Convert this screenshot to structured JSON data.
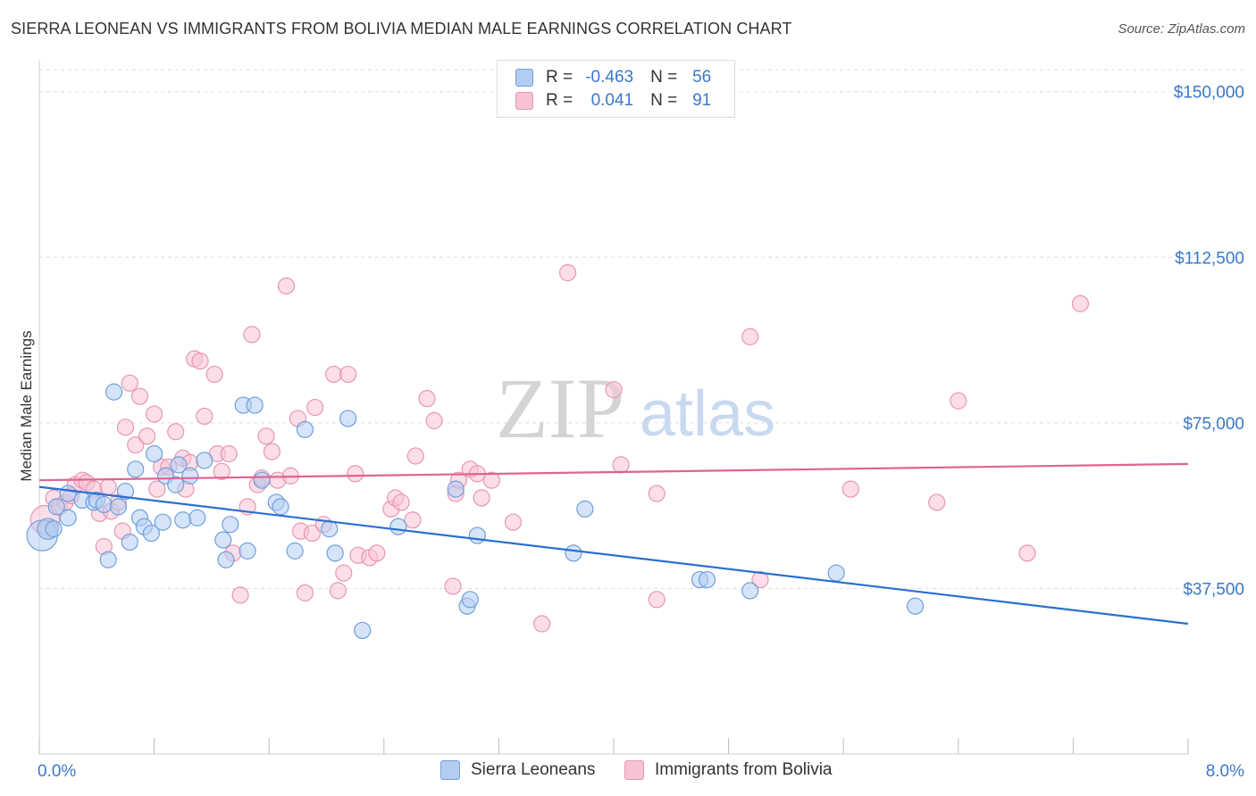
{
  "title": "SIERRA LEONEAN VS IMMIGRANTS FROM BOLIVIA MEDIAN MALE EARNINGS CORRELATION CHART",
  "source": "Source: ZipAtlas.com",
  "watermark": {
    "zip": "ZIP",
    "atlas": "atlas"
  },
  "legend": {
    "series1": {
      "r_label": "R =",
      "r_value": "-0.463",
      "n_label": "N =",
      "n_value": "56"
    },
    "series2": {
      "r_label": "R =",
      "r_value": "0.041",
      "n_label": "N =",
      "n_value": "91"
    }
  },
  "colors": {
    "blue_fill": "#b3cdf2",
    "blue_stroke": "#6f9fdc",
    "blue_line": "#2a6fd1",
    "pink_fill": "#f7c2d3",
    "pink_stroke": "#e896b2",
    "pink_line": "#e0648f",
    "tick_text": "#3a78c9",
    "grid": "#dddddd"
  },
  "chart_data": {
    "type": "scatter",
    "title": "SIERRA LEONEAN VS IMMIGRANTS FROM BOLIVIA MEDIAN MALE EARNINGS CORRELATION CHART",
    "xlabel": "",
    "ylabel": "Median Male Earnings",
    "xlim": [
      0,
      8.0
    ],
    "ylim": [
      0,
      155000
    ],
    "x_tick_labels": [
      "0.0%",
      "8.0%"
    ],
    "y_ticks": [
      37500,
      75000,
      112500,
      150000
    ],
    "y_tick_labels": [
      "$37,500",
      "$75,000",
      "$112,500",
      "$150,000"
    ],
    "legend_entries": [
      "Sierra Leoneans",
      "Immigrants from Bolivia"
    ],
    "series": [
      {
        "name": "Sierra Leoneans",
        "trend": {
          "x": [
            0,
            8.0
          ],
          "y": [
            60500,
            29500
          ]
        },
        "points": [
          [
            0.02,
            49500,
            1.9
          ],
          [
            0.06,
            51000,
            1.3
          ],
          [
            0.1,
            51000,
            1.0
          ],
          [
            0.12,
            56000,
            1.0
          ],
          [
            0.2,
            53500,
            1.0
          ],
          [
            0.2,
            59000,
            1.0
          ],
          [
            0.3,
            57500,
            1.0
          ],
          [
            0.38,
            57000,
            1.0
          ],
          [
            0.4,
            57500,
            1.0
          ],
          [
            0.45,
            56500,
            1.0
          ],
          [
            0.48,
            44000,
            1.0
          ],
          [
            0.52,
            82000,
            1.0
          ],
          [
            0.55,
            56000,
            1.0
          ],
          [
            0.6,
            59500,
            1.0
          ],
          [
            0.63,
            48000,
            1.0
          ],
          [
            0.67,
            64500,
            1.0
          ],
          [
            0.7,
            53500,
            1.0
          ],
          [
            0.73,
            51500,
            1.0
          ],
          [
            0.78,
            50000,
            1.0
          ],
          [
            0.8,
            68000,
            1.0
          ],
          [
            0.86,
            52500,
            1.0
          ],
          [
            0.88,
            63000,
            1.0
          ],
          [
            0.95,
            61000,
            1.0
          ],
          [
            0.97,
            65500,
            1.0
          ],
          [
            1.0,
            53000,
            1.0
          ],
          [
            1.05,
            63000,
            1.0
          ],
          [
            1.1,
            53500,
            1.0
          ],
          [
            1.15,
            66500,
            1.0
          ],
          [
            1.28,
            48500,
            1.0
          ],
          [
            1.3,
            44000,
            1.0
          ],
          [
            1.33,
            52000,
            1.0
          ],
          [
            1.42,
            79000,
            1.0
          ],
          [
            1.45,
            46000,
            1.0
          ],
          [
            1.5,
            79000,
            1.0
          ],
          [
            1.55,
            62000,
            1.0
          ],
          [
            1.65,
            57000,
            1.0
          ],
          [
            1.68,
            56000,
            1.0
          ],
          [
            1.78,
            46000,
            1.0
          ],
          [
            1.85,
            73500,
            1.0
          ],
          [
            2.02,
            51000,
            1.0
          ],
          [
            2.06,
            45500,
            1.0
          ],
          [
            2.15,
            76000,
            1.0
          ],
          [
            2.25,
            28000,
            1.0
          ],
          [
            2.5,
            51500,
            1.0
          ],
          [
            2.9,
            60000,
            1.0
          ],
          [
            2.98,
            33500,
            1.0
          ],
          [
            3.0,
            35000,
            1.0
          ],
          [
            3.05,
            49500,
            1.0
          ],
          [
            3.72,
            45500,
            1.0
          ],
          [
            3.8,
            55500,
            1.0
          ],
          [
            4.6,
            39500,
            1.0
          ],
          [
            4.65,
            39500,
            1.0
          ],
          [
            4.95,
            37000,
            1.0
          ],
          [
            5.55,
            41000,
            1.0
          ],
          [
            6.1,
            33500,
            1.0
          ]
        ]
      },
      {
        "name": "Immigrants from Bolivia",
        "trend": {
          "x": [
            0,
            8.0
          ],
          "y": [
            62000,
            65700
          ]
        },
        "points": [
          [
            0.04,
            53000,
            1.8
          ],
          [
            0.06,
            51000,
            1.0
          ],
          [
            0.1,
            58000,
            1.0
          ],
          [
            0.14,
            56000,
            1.0
          ],
          [
            0.18,
            57000,
            1.0
          ],
          [
            0.22,
            58500,
            1.0
          ],
          [
            0.25,
            61000,
            1.0
          ],
          [
            0.3,
            62000,
            1.0
          ],
          [
            0.33,
            61500,
            1.0
          ],
          [
            0.38,
            60000,
            1.0
          ],
          [
            0.42,
            54500,
            1.0
          ],
          [
            0.45,
            47000,
            1.0
          ],
          [
            0.48,
            60500,
            1.0
          ],
          [
            0.5,
            55000,
            1.0
          ],
          [
            0.55,
            57000,
            1.0
          ],
          [
            0.58,
            50500,
            1.0
          ],
          [
            0.6,
            74000,
            1.0
          ],
          [
            0.63,
            84000,
            1.0
          ],
          [
            0.67,
            70000,
            1.0
          ],
          [
            0.7,
            81000,
            1.0
          ],
          [
            0.75,
            72000,
            1.0
          ],
          [
            0.8,
            77000,
            1.0
          ],
          [
            0.82,
            60000,
            1.0
          ],
          [
            0.85,
            65000,
            1.0
          ],
          [
            0.9,
            65000,
            1.0
          ],
          [
            0.95,
            73000,
            1.0
          ],
          [
            1.0,
            67000,
            1.0
          ],
          [
            1.02,
            60000,
            1.0
          ],
          [
            1.05,
            66000,
            1.0
          ],
          [
            1.08,
            89500,
            1.0
          ],
          [
            1.12,
            89000,
            1.0
          ],
          [
            1.15,
            76500,
            1.0
          ],
          [
            1.22,
            86000,
            1.0
          ],
          [
            1.24,
            68000,
            1.0
          ],
          [
            1.27,
            64000,
            1.0
          ],
          [
            1.32,
            68000,
            1.0
          ],
          [
            1.35,
            45500,
            1.0
          ],
          [
            1.4,
            36000,
            1.0
          ],
          [
            1.45,
            56000,
            1.0
          ],
          [
            1.48,
            95000,
            1.0
          ],
          [
            1.52,
            61000,
            1.0
          ],
          [
            1.55,
            62500,
            1.0
          ],
          [
            1.58,
            72000,
            1.0
          ],
          [
            1.62,
            68500,
            1.0
          ],
          [
            1.66,
            62000,
            1.0
          ],
          [
            1.72,
            106000,
            1.0
          ],
          [
            1.75,
            63000,
            1.0
          ],
          [
            1.8,
            76000,
            1.0
          ],
          [
            1.82,
            50500,
            1.0
          ],
          [
            1.85,
            36500,
            1.0
          ],
          [
            1.9,
            50000,
            1.0
          ],
          [
            1.92,
            78500,
            1.0
          ],
          [
            1.98,
            52000,
            1.0
          ],
          [
            2.05,
            86000,
            1.0
          ],
          [
            2.08,
            37000,
            1.0
          ],
          [
            2.12,
            41000,
            1.0
          ],
          [
            2.15,
            86000,
            1.0
          ],
          [
            2.2,
            63500,
            1.0
          ],
          [
            2.22,
            45000,
            1.0
          ],
          [
            2.3,
            44500,
            1.0
          ],
          [
            2.35,
            45500,
            1.0
          ],
          [
            2.45,
            55500,
            1.0
          ],
          [
            2.48,
            58000,
            1.0
          ],
          [
            2.52,
            57000,
            1.0
          ],
          [
            2.6,
            53000,
            1.0
          ],
          [
            2.62,
            67500,
            1.0
          ],
          [
            2.7,
            80500,
            1.0
          ],
          [
            2.75,
            75500,
            1.0
          ],
          [
            2.88,
            38000,
            1.0
          ],
          [
            2.9,
            59000,
            1.0
          ],
          [
            2.92,
            62000,
            1.0
          ],
          [
            3.0,
            64500,
            1.0
          ],
          [
            3.05,
            63500,
            1.0
          ],
          [
            3.08,
            58000,
            1.0
          ],
          [
            3.15,
            62000,
            1.0
          ],
          [
            3.3,
            52500,
            1.0
          ],
          [
            3.5,
            29500,
            1.0
          ],
          [
            3.68,
            109000,
            1.0
          ],
          [
            4.0,
            82500,
            1.0
          ],
          [
            4.05,
            65500,
            1.0
          ],
          [
            4.3,
            59000,
            1.0
          ],
          [
            4.3,
            35000,
            1.0
          ],
          [
            4.95,
            94500,
            1.0
          ],
          [
            5.02,
            39500,
            1.0
          ],
          [
            5.65,
            60000,
            1.0
          ],
          [
            6.25,
            57000,
            1.0
          ],
          [
            6.4,
            80000,
            1.0
          ],
          [
            6.88,
            45500,
            1.0
          ],
          [
            7.25,
            102000,
            1.0
          ]
        ]
      }
    ]
  },
  "legend_bottom": {
    "item1": "Sierra Leoneans",
    "item2": "Immigrants from Bolivia"
  }
}
